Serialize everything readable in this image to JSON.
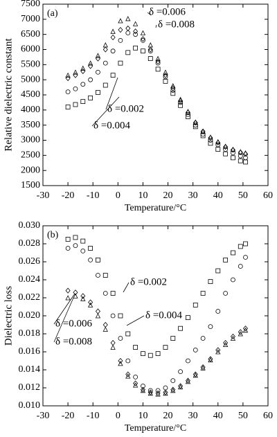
{
  "chart_data": [
    {
      "type": "scatter",
      "panel_label": "(a)",
      "x_label": "Temperature/°C",
      "y_label": "Relative dielectric constant",
      "x": [
        -20,
        -17,
        -14,
        -11,
        -8,
        -5,
        -2,
        1,
        4,
        7,
        10,
        13,
        16,
        19,
        22,
        25,
        28,
        31,
        34,
        37,
        40,
        43,
        46,
        49,
        51
      ],
      "xlim": [
        -30,
        60
      ],
      "xticks": [
        -30,
        -20,
        -10,
        0,
        10,
        20,
        30,
        40,
        50,
        60
      ],
      "ylim": [
        1500,
        7500
      ],
      "yticks": [
        1500,
        2000,
        2500,
        3000,
        3500,
        4000,
        4500,
        5000,
        5500,
        6000,
        6500,
        7000,
        7500
      ],
      "series": [
        {
          "name": "δ =0.006",
          "color": "#000000",
          "marker": "triangle",
          "values": [
            5150,
            5250,
            5380,
            5550,
            5800,
            6150,
            6600,
            6950,
            7020,
            6850,
            6550,
            6150,
            5700,
            5250,
            4800,
            4350,
            3950,
            3600,
            3300,
            3100,
            2950,
            2800,
            2700,
            2620,
            2580
          ]
        },
        {
          "name": "δ =0.008",
          "color": "#000000",
          "marker": "diamond",
          "values": [
            5050,
            5150,
            5280,
            5450,
            5700,
            6000,
            6400,
            6650,
            6700,
            6600,
            6350,
            6000,
            5600,
            5150,
            4720,
            4300,
            3920,
            3580,
            3290,
            3080,
            2920,
            2780,
            2680,
            2600,
            2550
          ]
        },
        {
          "name": "δ =0.002",
          "color": "#000000",
          "marker": "circle",
          "values": [
            4600,
            4700,
            4850,
            5000,
            5250,
            5550,
            5950,
            6300,
            6550,
            6500,
            6300,
            5950,
            5550,
            5100,
            4650,
            4250,
            3850,
            3500,
            3200,
            3000,
            2850,
            2700,
            2580,
            2480,
            2420
          ]
        },
        {
          "name": "δ =0.004",
          "color": "#000000",
          "marker": "square",
          "values": [
            4100,
            4180,
            4280,
            4400,
            4580,
            4820,
            5150,
            5550,
            5900,
            6050,
            5950,
            5700,
            5350,
            4950,
            4550,
            4150,
            3780,
            3450,
            3150,
            2900,
            2700,
            2550,
            2420,
            2320,
            2280
          ]
        }
      ]
    },
    {
      "type": "scatter",
      "panel_label": "(b)",
      "x_label": "Temperature/°C",
      "y_label": "Dielectric loss",
      "x": [
        -20,
        -17,
        -14,
        -11,
        -8,
        -5,
        -2,
        1,
        4,
        7,
        10,
        13,
        16,
        19,
        22,
        25,
        28,
        31,
        34,
        37,
        40,
        43,
        46,
        49,
        51
      ],
      "xlim": [
        -30,
        60
      ],
      "xticks": [
        -30,
        -20,
        -10,
        0,
        10,
        20,
        30,
        40,
        50,
        60
      ],
      "ylim": [
        0.01,
        0.03
      ],
      "yticks": [
        {
          "value": 0.01,
          "label": "0.010"
        },
        {
          "value": 0.012,
          "label": "0.012"
        },
        {
          "value": 0.014,
          "label": "0.014"
        },
        {
          "value": 0.016,
          "label": "0.016"
        },
        {
          "value": 0.018,
          "label": "0.018"
        },
        {
          "value": 0.02,
          "label": "0.020"
        },
        {
          "value": 0.022,
          "label": "0.022"
        },
        {
          "value": 0.024,
          "label": "0.024"
        },
        {
          "value": 0.026,
          "label": "0.026"
        },
        {
          "value": 0.028,
          "label": "0.028"
        },
        {
          "value": 0.03,
          "label": "0.030"
        }
      ],
      "series": [
        {
          "name": "δ =0.002",
          "color": "#000000",
          "marker": "square",
          "values": [
            0.0285,
            0.0287,
            0.0283,
            0.0275,
            0.0262,
            0.0245,
            0.0225,
            0.02,
            0.018,
            0.0165,
            0.0158,
            0.0156,
            0.0158,
            0.0165,
            0.0175,
            0.0186,
            0.0198,
            0.0212,
            0.0225,
            0.0238,
            0.025,
            0.0262,
            0.027,
            0.0277,
            0.028
          ]
        },
        {
          "name": "δ =0.004",
          "color": "#000000",
          "marker": "circle",
          "values": [
            0.0275,
            0.0278,
            0.0272,
            0.0262,
            0.0245,
            0.0225,
            0.02,
            0.0175,
            0.015,
            0.0132,
            0.0122,
            0.0117,
            0.0117,
            0.012,
            0.0128,
            0.0138,
            0.015,
            0.0162,
            0.0175,
            0.0188,
            0.0205,
            0.0225,
            0.024,
            0.0255,
            0.0265
          ]
        },
        {
          "name": "δ =0.006",
          "color": "#000000",
          "marker": "diamond",
          "values": [
            0.0228,
            0.0226,
            0.0222,
            0.0215,
            0.0205,
            0.019,
            0.017,
            0.015,
            0.0135,
            0.0125,
            0.0118,
            0.0115,
            0.0114,
            0.0115,
            0.0118,
            0.0122,
            0.0128,
            0.0135,
            0.0143,
            0.0152,
            0.0162,
            0.017,
            0.0177,
            0.0182,
            0.0186
          ]
        },
        {
          "name": "δ =0.008",
          "color": "#000000",
          "marker": "triangle",
          "values": [
            0.022,
            0.0222,
            0.0219,
            0.0212,
            0.02,
            0.0185,
            0.0165,
            0.0147,
            0.0133,
            0.0123,
            0.0117,
            0.0114,
            0.0113,
            0.0114,
            0.0117,
            0.0121,
            0.0127,
            0.0134,
            0.0142,
            0.0151,
            0.016,
            0.0168,
            0.0175,
            0.018,
            0.0184
          ]
        }
      ]
    }
  ]
}
